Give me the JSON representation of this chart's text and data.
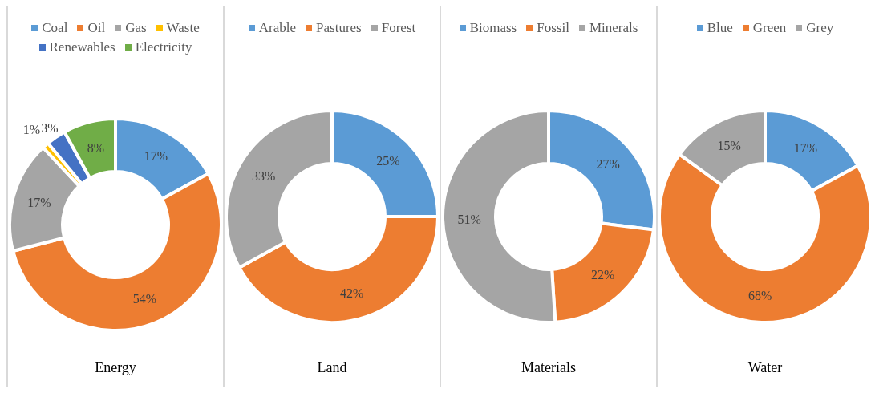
{
  "chart_data": [
    {
      "type": "donut",
      "title": "Energy",
      "categories": [
        "Coal",
        "Oil",
        "Gas",
        "Waste",
        "Renewables",
        "Electricity"
      ],
      "values": [
        17,
        54,
        17,
        1,
        3,
        8
      ],
      "colors": [
        "#5b9bd5",
        "#ed7d31",
        "#a5a5a5",
        "#ffc000",
        "#4472c4",
        "#70ad47"
      ],
      "value_labels": [
        "17%",
        "54%",
        "17%",
        "1%",
        "3%",
        "8%"
      ],
      "legend": "top"
    },
    {
      "type": "donut",
      "title": "Land",
      "categories": [
        "Arable",
        "Pastures",
        "Forest"
      ],
      "values": [
        25,
        42,
        33
      ],
      "colors": [
        "#5b9bd5",
        "#ed7d31",
        "#a5a5a5"
      ],
      "value_labels": [
        "25%",
        "42%",
        "33%"
      ],
      "legend": "top"
    },
    {
      "type": "donut",
      "title": "Materials",
      "categories": [
        "Biomass",
        "Fossil",
        "Minerals"
      ],
      "values": [
        27,
        22,
        51
      ],
      "colors": [
        "#5b9bd5",
        "#ed7d31",
        "#a5a5a5"
      ],
      "value_labels": [
        "27%",
        "22%",
        "51%"
      ],
      "legend": "top"
    },
    {
      "type": "donut",
      "title": "Water",
      "categories": [
        "Blue",
        "Green",
        "Grey"
      ],
      "values": [
        17,
        68,
        15
      ],
      "colors": [
        "#5b9bd5",
        "#ed7d31",
        "#a5a5a5"
      ],
      "value_labels": [
        "17%",
        "68%",
        "15%"
      ],
      "legend": "top"
    }
  ]
}
